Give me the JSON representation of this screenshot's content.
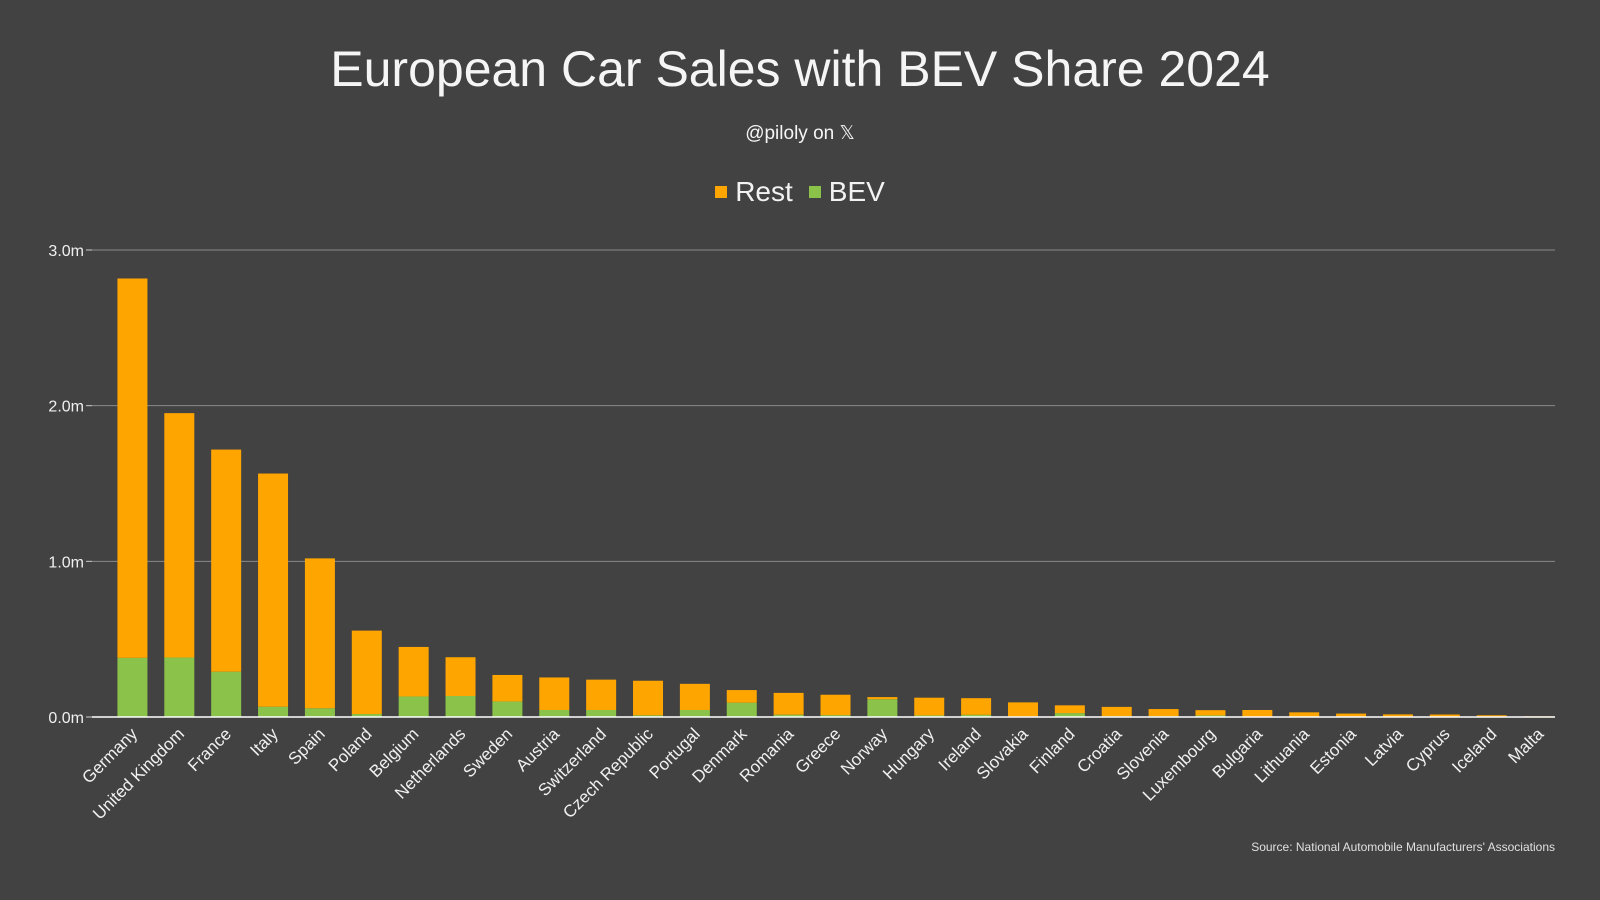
{
  "chart_data": {
    "type": "bar",
    "stacked": true,
    "title": "European Car Sales with BEV Share 2024",
    "subtitle": "@piloly on",
    "subtitle_icon": "x-logo-icon",
    "source": "Source: National Automobile Manufacturers' Associations",
    "ylim": [
      0,
      3000000
    ],
    "yticks": [
      0,
      1000000,
      2000000,
      3000000
    ],
    "ytick_labels": [
      "0.0m",
      "1.0m",
      "2.0m",
      "3.0m"
    ],
    "legend_position": "top-center",
    "colors": {
      "Rest": "#ffa500",
      "BEV": "#8bc34a"
    },
    "categories": [
      "Germany",
      "United Kingdom",
      "France",
      "Italy",
      "Spain",
      "Poland",
      "Belgium",
      "Netherlands",
      "Sweden",
      "Austria",
      "Switzerland",
      "Czech Republic",
      "Portugal",
      "Denmark",
      "Romania",
      "Greece",
      "Norway",
      "Hungary",
      "Ireland",
      "Slovakia",
      "Finland",
      "Croatia",
      "Slovenia",
      "Luxembourg",
      "Bulgaria",
      "Lithuania",
      "Estonia",
      "Latvia",
      "Cyprus",
      "Iceland",
      "Malta"
    ],
    "series": [
      {
        "name": "BEV",
        "values": [
          380000,
          382000,
          291000,
          66000,
          56000,
          19000,
          132000,
          135000,
          100000,
          45000,
          45000,
          11000,
          45000,
          92000,
          15000,
          12000,
          114000,
          10000,
          14000,
          4000,
          25000,
          5000,
          5000,
          10000,
          2000,
          2000,
          1000,
          1000,
          1000,
          2000,
          500
        ]
      },
      {
        "name": "Rest",
        "values": [
          2437000,
          1570000,
          1427000,
          1498000,
          963000,
          536000,
          318000,
          249000,
          170000,
          209000,
          195000,
          222000,
          168000,
          81000,
          140000,
          131000,
          14000,
          114000,
          107000,
          90000,
          50000,
          60000,
          46000,
          34000,
          43000,
          28000,
          21000,
          16000,
          15000,
          9000,
          4000
        ]
      }
    ]
  }
}
